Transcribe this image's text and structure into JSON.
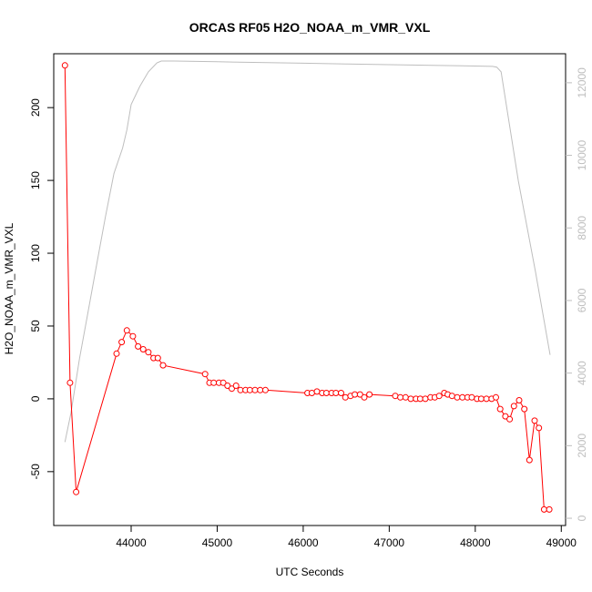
{
  "chart_data": {
    "type": "line",
    "title": "ORCAS RF05 H2O_NOAA_m_VMR_VXL",
    "xlabel": "UTC Seconds",
    "ylabel": "H2O_NOAA_m_VMR_VXL",
    "xlim": [
      43100,
      49050
    ],
    "ylim": [
      -87,
      237
    ],
    "y2lim": [
      -200,
      12800
    ],
    "x_ticks": [
      44000,
      45000,
      46000,
      47000,
      48000,
      49000
    ],
    "y_ticks": [
      -50,
      0,
      50,
      100,
      150,
      200
    ],
    "y2_ticks": [
      0,
      2000,
      4000,
      6000,
      8000,
      10000,
      12000
    ],
    "colors": {
      "primary": "#ff0000",
      "secondary": "#bebebe",
      "axis": "#000000"
    },
    "series": [
      {
        "axis": "left",
        "style": "line+points",
        "x": [
          43230,
          43290,
          43360,
          43830,
          43890,
          43950,
          44020,
          44080,
          44140,
          44200,
          44260,
          44310,
          44370,
          44860,
          44910,
          44960,
          45020,
          45070,
          45120,
          45170,
          45220,
          45270,
          45330,
          45380,
          45440,
          45500,
          45560,
          46050,
          46100,
          46160,
          46220,
          46270,
          46330,
          46380,
          46440,
          46490,
          46550,
          46600,
          46660,
          46710,
          46770,
          47070,
          47130,
          47190,
          47250,
          47310,
          47360,
          47420,
          47480,
          47530,
          47580,
          47640,
          47680,
          47730,
          47790,
          47850,
          47910,
          47960,
          48020,
          48070,
          48130,
          48190,
          48240,
          48290,
          48350,
          48400,
          48450,
          48510,
          48570,
          48630,
          48690,
          48740,
          48800,
          48860
        ],
        "y": [
          229,
          11,
          -64,
          31,
          39,
          47,
          43,
          36,
          34,
          32,
          28,
          28,
          23,
          17,
          11,
          11,
          11,
          11,
          9,
          7,
          9,
          6,
          6,
          6,
          6,
          6,
          6,
          4,
          4,
          5,
          4,
          4,
          4,
          4,
          4,
          1,
          2,
          3,
          3,
          1,
          3,
          2,
          1,
          1,
          0,
          0,
          0,
          0,
          1,
          1,
          2,
          4,
          3,
          2,
          1,
          1,
          1,
          1,
          0,
          0,
          0,
          0,
          1,
          -7,
          -12,
          -14,
          -5,
          -1,
          -7,
          -42,
          -15,
          -20,
          -76,
          -76
        ]
      },
      {
        "axis": "right",
        "style": "line",
        "x": [
          43230,
          43300,
          43400,
          43500,
          43600,
          43700,
          43800,
          43900,
          43950,
          44000,
          44100,
          44200,
          44300,
          44350,
          44400,
          44500,
          45000,
          45500,
          46000,
          46500,
          47000,
          47500,
          48000,
          48200,
          48250,
          48300,
          48500,
          48700,
          48870
        ],
        "y": [
          2100,
          2900,
          4400,
          5700,
          7000,
          8300,
          9500,
          10200,
          10700,
          11400,
          11900,
          12300,
          12550,
          12600,
          12600,
          12600,
          12580,
          12560,
          12540,
          12520,
          12500,
          12480,
          12460,
          12450,
          12430,
          12300,
          9300,
          6800,
          4500
        ]
      }
    ]
  }
}
